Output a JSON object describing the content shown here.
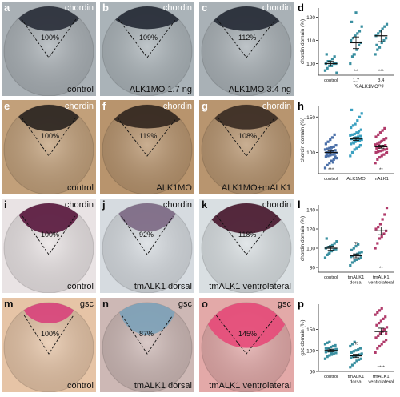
{
  "panels": [
    {
      "letter": "a",
      "marker": "chordin",
      "condition": "control",
      "percent": "100%",
      "bg": "#a9b0b5",
      "cap": "#2a2f3a",
      "capW": 0.78,
      "capH": 0.26,
      "label": "white"
    },
    {
      "letter": "b",
      "marker": "chordin",
      "condition": "ALK1MO 1.7 ng",
      "percent": "109%",
      "bg": "#aab3b8",
      "cap": "#262b36",
      "capW": 0.88,
      "capH": 0.24,
      "label": "white"
    },
    {
      "letter": "c",
      "marker": "chordin",
      "condition": "ALK1MO 3.4 ng",
      "percent": "112%",
      "bg": "#a9b1b6",
      "cap": "#262b36",
      "capW": 0.92,
      "capH": 0.26,
      "label": "white"
    },
    {
      "letter": "e",
      "marker": "chordin",
      "condition": "control",
      "percent": "100%",
      "bg": "#c2a07a",
      "cap": "#2b2521",
      "capW": 0.76,
      "capH": 0.28,
      "label": "white"
    },
    {
      "letter": "f",
      "marker": "chordin",
      "condition": "ALK1MO",
      "percent": "119%",
      "bg": "#b8946d",
      "cap": "#33271f",
      "capW": 0.95,
      "capH": 0.25,
      "label": "white"
    },
    {
      "letter": "g",
      "marker": "chordin",
      "condition": "ALK1MO+mALK1",
      "percent": "108%",
      "bg": "#b8956f",
      "cap": "#3b2c24",
      "capW": 0.86,
      "capH": 0.26,
      "label": "white"
    },
    {
      "letter": "i",
      "marker": "chordin",
      "condition": "control",
      "percent": "100%",
      "bg": "#e9e3e4",
      "cap": "#5a1a3f",
      "capW": 0.72,
      "capH": 0.32,
      "label": "black"
    },
    {
      "letter": "j",
      "marker": "chordin",
      "condition": "tmALK1 dorsal",
      "percent": "92%",
      "bg": "#d6dbe0",
      "cap": "#7e6a85",
      "capW": 0.68,
      "capH": 0.3,
      "label": "black"
    },
    {
      "letter": "k",
      "marker": "chordin",
      "condition": "tmALK1 ventrolateral",
      "percent": "118%",
      "bg": "#d9dfe2",
      "cap": "#4a1a30",
      "capW": 0.92,
      "capH": 0.32,
      "label": "black"
    },
    {
      "letter": "m",
      "marker": "gsc",
      "condition": "control",
      "percent": "100%",
      "bg": "#e6c4a6",
      "cap": "#d8447c",
      "capW": 0.6,
      "capH": 0.22,
      "label": "black"
    },
    {
      "letter": "n",
      "marker": "gsc",
      "condition": "tmALK1 dorsal",
      "percent": "87%",
      "bg": "#cdb8b5",
      "cap": "#7ea2b8",
      "capW": 0.65,
      "capH": 0.34,
      "label": "black"
    },
    {
      "letter": "o",
      "marker": "gsc",
      "condition": "tmALK1 ventrolateral",
      "percent": "145%",
      "bg": "#e3a9a8",
      "cap": "#e64c7a",
      "capW": 0.98,
      "capH": 0.48,
      "label": "black"
    }
  ],
  "chart_data": [
    {
      "letter": "d",
      "type": "scatter",
      "ylabel": "chordin domain (%)",
      "xlabel": "ALK1MO",
      "categories": [
        "control",
        "1.7 ng",
        "3.4 ng"
      ],
      "yticks": [
        100,
        110,
        120
      ],
      "ylim": [
        95,
        124
      ],
      "color": "#3a8fa0",
      "marker": "square",
      "means": [
        100,
        109,
        112
      ],
      "sems": [
        1,
        2.5,
        2.5
      ],
      "points": [
        [
          97,
          98,
          99,
          99,
          100,
          100,
          100,
          101,
          101,
          102,
          103,
          96,
          104
        ],
        [
          100,
          103,
          104,
          106,
          108,
          109,
          110,
          111,
          112,
          113,
          114,
          116,
          118,
          104,
          122
        ],
        [
          104,
          106,
          107,
          109,
          110,
          111,
          112,
          113,
          114,
          115,
          116,
          117,
          108
        ]
      ],
      "stars": [
        "",
        "**",
        "***"
      ]
    },
    {
      "letter": "h",
      "type": "scatter",
      "ylabel": "chordin domain (%)",
      "xlabel": "",
      "categories": [
        "control",
        "ALK1MO",
        "mALK1"
      ],
      "yticks": [
        100,
        150
      ],
      "ylim": [
        70,
        165
      ],
      "color": "#3aa0c0",
      "colors": [
        "#4a6fa8",
        "#3aa0c0",
        "#b03a6a"
      ],
      "marker": "square",
      "means": [
        100,
        119,
        108
      ],
      "sems": [
        2,
        2,
        2
      ],
      "points": [
        [
          78,
          82,
          85,
          88,
          90,
          92,
          94,
          95,
          96,
          97,
          98,
          99,
          100,
          100,
          101,
          102,
          103,
          104,
          105,
          106,
          107,
          108,
          110,
          112,
          115,
          118,
          121,
          125,
          92,
          96,
          99,
          103,
          86,
          94
        ],
        [
          95,
          100,
          104,
          106,
          108,
          110,
          112,
          114,
          115,
          116,
          117,
          118,
          119,
          120,
          121,
          122,
          123,
          124,
          125,
          126,
          128,
          130,
          132,
          135,
          138,
          140,
          145,
          150,
          155,
          160,
          113,
          118,
          127,
          110
        ],
        [
          85,
          90,
          93,
          95,
          97,
          99,
          100,
          101,
          102,
          103,
          104,
          105,
          106,
          107,
          108,
          109,
          110,
          111,
          112,
          114,
          116,
          118,
          120,
          122,
          125,
          128,
          131,
          134,
          100,
          106,
          110,
          115
        ]
      ],
      "stars": [
        "***",
        "",
        "**"
      ]
    },
    {
      "letter": "l",
      "type": "scatter",
      "ylabel": "chordin domain (%)",
      "xlabel": "",
      "categories": [
        "control",
        "tmALK1 dorsal",
        "tmALK1 ventrolateral"
      ],
      "yticks": [
        80,
        100,
        120,
        140
      ],
      "ylim": [
        75,
        145
      ],
      "colors": [
        "#3a8fa0",
        "#3a8fa0",
        "#b03a6a"
      ],
      "marker": "square",
      "means": [
        100,
        92,
        118
      ],
      "sems": [
        2,
        2,
        4
      ],
      "points": [
        [
          90,
          93,
          95,
          97,
          98,
          99,
          100,
          101,
          102,
          103,
          105,
          107,
          110,
          94
        ],
        [
          82,
          85,
          87,
          88,
          89,
          90,
          91,
          92,
          93,
          94,
          95,
          96,
          98,
          100,
          102,
          104
        ],
        [
          100,
          105,
          110,
          112,
          115,
          118,
          120,
          122,
          125,
          130,
          135,
          142
        ]
      ],
      "stars": [
        "",
        "ns",
        "**"
      ]
    },
    {
      "letter": "p",
      "type": "scatter",
      "ylabel": "gsc domain (%)",
      "xlabel": "",
      "categories": [
        "control",
        "tmALK1 dorsal",
        "tmALK1 ventrolateral"
      ],
      "yticks": [
        50,
        100,
        150
      ],
      "ylim": [
        50,
        210
      ],
      "colors": [
        "#3a8fa0",
        "#3a8fa0",
        "#b03a6a"
      ],
      "marker": "square",
      "means": [
        100,
        87,
        145
      ],
      "sems": [
        3,
        4,
        8
      ],
      "points": [
        [
          80,
          85,
          88,
          90,
          92,
          94,
          96,
          98,
          100,
          100,
          101,
          102,
          104,
          106,
          108,
          110,
          112,
          115,
          118,
          120,
          95,
          99,
          103,
          105
        ],
        [
          60,
          65,
          70,
          75,
          78,
          80,
          82,
          85,
          87,
          88,
          90,
          92,
          95,
          98,
          100,
          102,
          105,
          110,
          115,
          120
        ],
        [
          95,
          105,
          110,
          115,
          120,
          125,
          130,
          135,
          140,
          145,
          150,
          155,
          160,
          165,
          170,
          175,
          180,
          185,
          190,
          195,
          200,
          150,
          140,
          130
        ]
      ],
      "stars": [
        "",
        "ns",
        "****"
      ]
    }
  ]
}
